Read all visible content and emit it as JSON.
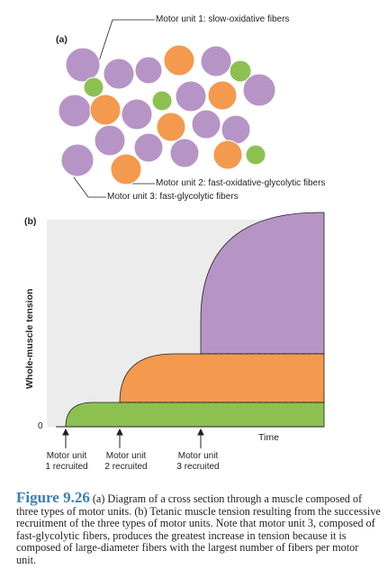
{
  "panel_a": {
    "tag": "(a)",
    "label_unit1": "Motor unit 1: slow-oxidative fibers",
    "label_unit2": "Motor unit 2: fast-oxidative-glycolytic fibers",
    "label_unit3": "Motor unit 3: fast-glycolytic fibers",
    "colors": {
      "unit1_slow_oxidative": "#8cc152",
      "unit2_fast_oxidative_glycolytic": "#f39a4e",
      "unit3_fast_glycolytic": "#b695c6"
    }
  },
  "panel_b": {
    "tag": "(b)",
    "y_axis_label": "Whole-muscle tension",
    "x_axis_label": "Time",
    "zero_label": "0",
    "recruitment": [
      {
        "line1": "Motor unit",
        "line2": "1 recruited"
      },
      {
        "line1": "Motor unit",
        "line2": "2 recruited"
      },
      {
        "line1": "Motor unit",
        "line2": "3 recruited"
      }
    ],
    "chart_data": {
      "type": "area",
      "xlabel": "Time",
      "ylabel": "Whole-muscle tension",
      "series": [
        {
          "name": "Motor unit 1",
          "color": "#8cc152"
        },
        {
          "name": "Motor unit 2",
          "color": "#f39a4e"
        },
        {
          "name": "Motor unit 3",
          "color": "#b695c6"
        }
      ],
      "stack_levels": [
        1,
        2.6,
        6
      ],
      "background": "#ececec"
    }
  },
  "caption": {
    "title": "Figure 9.26",
    "text": "(a) Diagram of a cross section through a muscle composed of three types of motor units. (b) Tetanic muscle tension resulting from the successive recruitment of the three types of motor units. Note that motor unit 3, composed of fast-glycolytic fibers, produces the greatest increase in tension because it is composed of large-diameter fibers with the largest number of fibers per motor unit."
  }
}
